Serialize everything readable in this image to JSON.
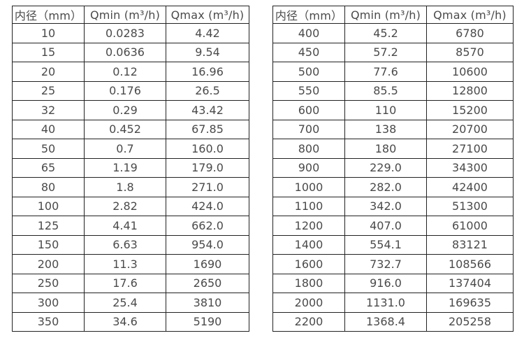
{
  "page": {
    "background": "#ffffff"
  },
  "colors": {
    "text": "#4a4a4a",
    "border": "#222222"
  },
  "tables": [
    {
      "name": "flow-table-small-diameters",
      "headers": [
        "内径（mm）",
        "Qmin (m³/h)",
        "Qmax (m³/h)"
      ],
      "rows": [
        [
          "10",
          "0.0283",
          "4.42"
        ],
        [
          "15",
          "0.0636",
          "9.54"
        ],
        [
          "20",
          "0.12",
          "16.96"
        ],
        [
          "25",
          "0.176",
          "26.5"
        ],
        [
          "32",
          "0.29",
          "43.42"
        ],
        [
          "40",
          "0.452",
          "67.85"
        ],
        [
          "50",
          "0.7",
          "160.0"
        ],
        [
          "65",
          "1.19",
          "179.0"
        ],
        [
          "80",
          "1.8",
          "271.0"
        ],
        [
          "100",
          "2.82",
          "424.0"
        ],
        [
          "125",
          "4.41",
          "662.0"
        ],
        [
          "150",
          "6.63",
          "954.0"
        ],
        [
          "200",
          "11.3",
          "1690"
        ],
        [
          "250",
          "17.6",
          "2650"
        ],
        [
          "300",
          "25.4",
          "3810"
        ],
        [
          "350",
          "34.6",
          "5190"
        ]
      ]
    },
    {
      "name": "flow-table-large-diameters",
      "headers": [
        "内径（mm）",
        "Qmin (m³/h)",
        "Qmax (m³/h)"
      ],
      "rows": [
        [
          "400",
          "45.2",
          "6780"
        ],
        [
          "450",
          "57.2",
          "8570"
        ],
        [
          "500",
          "77.6",
          "10600"
        ],
        [
          "550",
          "85.5",
          "12800"
        ],
        [
          "600",
          "110",
          "15200"
        ],
        [
          "700",
          "138",
          "20700"
        ],
        [
          "800",
          "180",
          "27100"
        ],
        [
          "900",
          "229.0",
          "34300"
        ],
        [
          "1000",
          "282.0",
          "42400"
        ],
        [
          "1100",
          "342.0",
          "51300"
        ],
        [
          "1200",
          "407.0",
          "61000"
        ],
        [
          "1400",
          "554.1",
          "83121"
        ],
        [
          "1600",
          "732.7",
          "108566"
        ],
        [
          "1800",
          "916.0",
          "137404"
        ],
        [
          "2000",
          "1131.0",
          "169635"
        ],
        [
          "2200",
          "1368.4",
          "205258"
        ]
      ]
    }
  ]
}
